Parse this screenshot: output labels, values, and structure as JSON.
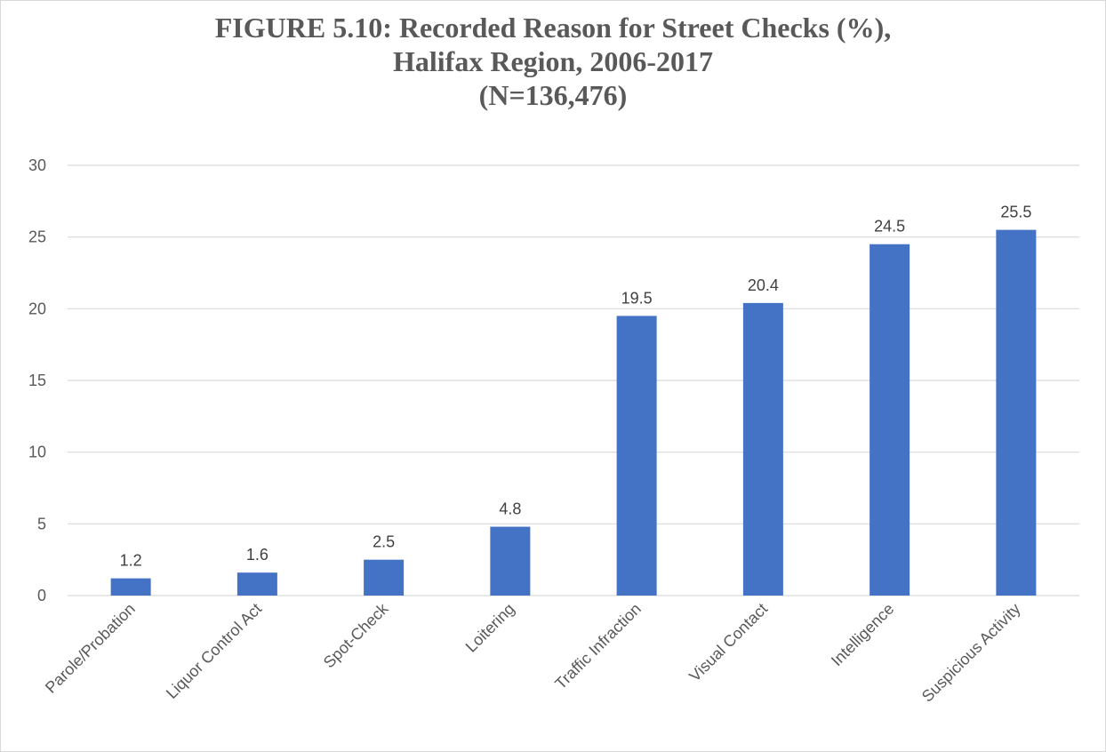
{
  "chart_data": {
    "type": "bar",
    "title": [
      "FIGURE 5.10: Recorded Reason for Street Checks (%),",
      "Halifax Region, 2006-2017",
      "(N=136,476)"
    ],
    "xlabel": "",
    "ylabel": "",
    "ylim": [
      0,
      30
    ],
    "yticks": [
      "0",
      "5",
      "10",
      "15",
      "20",
      "25",
      "30"
    ],
    "grid": true,
    "legend": "none",
    "bar_color": "#4472c4",
    "categories": [
      "Parole/Probation",
      "Liquor Control Act",
      "Spot-Check",
      "Loitering",
      "Traffic Infraction",
      "Visual Contact",
      "Intelligence",
      "Suspicious Activity"
    ],
    "values": [
      1.2,
      1.6,
      2.5,
      4.8,
      19.5,
      20.4,
      24.5,
      25.5
    ],
    "data_labels": [
      "1.2",
      "1.6",
      "2.5",
      "4.8",
      "19.5",
      "20.4",
      "24.5",
      "25.5"
    ]
  }
}
